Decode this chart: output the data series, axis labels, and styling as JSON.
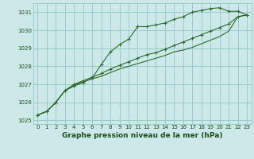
{
  "bg_color": "#cce8e8",
  "grid_color": "#99cccc",
  "line_color": "#2d6b2d",
  "marker_color": "#2d6b2d",
  "xlabel": "Graphe pression niveau de la mer (hPa)",
  "ylim": [
    1024.8,
    1031.5
  ],
  "xlim": [
    -0.5,
    23.5
  ],
  "yticks": [
    1025,
    1026,
    1027,
    1028,
    1029,
    1030,
    1031
  ],
  "xticks": [
    0,
    1,
    2,
    3,
    4,
    5,
    6,
    7,
    8,
    9,
    10,
    11,
    12,
    13,
    14,
    15,
    16,
    17,
    18,
    19,
    20,
    21,
    22,
    23
  ],
  "series1": [
    1025.3,
    1025.5,
    1026.0,
    1026.65,
    1026.9,
    1027.1,
    1027.35,
    1028.1,
    1028.8,
    1029.2,
    1029.5,
    1030.2,
    1030.2,
    1030.3,
    1030.4,
    1030.6,
    1030.75,
    1031.0,
    1031.1,
    1031.2,
    1031.25,
    1031.05,
    1031.05,
    1030.85
  ],
  "series2": [
    1025.3,
    1025.5,
    1026.0,
    1026.65,
    1027.0,
    1027.2,
    1027.4,
    1027.6,
    1027.85,
    1028.05,
    1028.25,
    1028.45,
    1028.65,
    1028.75,
    1028.95,
    1029.15,
    1029.35,
    1029.55,
    1029.75,
    1029.95,
    1030.15,
    1030.35,
    1030.75,
    1030.85
  ],
  "series3": [
    1025.3,
    1025.5,
    1026.0,
    1026.65,
    1026.95,
    1027.15,
    1027.3,
    1027.45,
    1027.65,
    1027.85,
    1028.0,
    1028.15,
    1028.3,
    1028.45,
    1028.6,
    1028.8,
    1028.9,
    1029.05,
    1029.25,
    1029.45,
    1029.65,
    1029.95,
    1030.75,
    1030.85
  ]
}
